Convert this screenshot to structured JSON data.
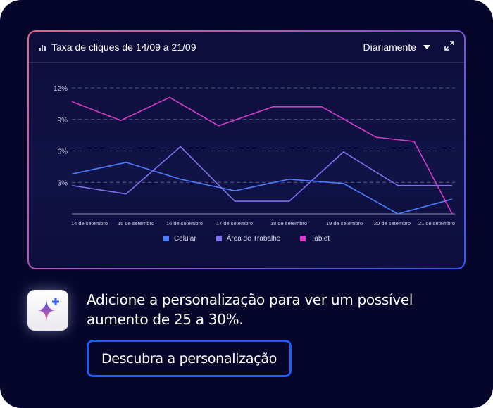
{
  "header": {
    "title": "Taxa de cliques de 14/09 a 21/09",
    "period_select": "Diariamente",
    "chart_icon": "bar-chart-icon",
    "expand_icon": "expand-icon"
  },
  "promo": {
    "icon": "sparkle-icon",
    "message_line1": "Adicione a personalização para ver um possível",
    "message_line2": "aumento de 25 a 30%.",
    "button_label": "Descubra a personalização"
  },
  "colors": {
    "accent": "#1d5cff",
    "Celular": "#4a7dff",
    "Área de Trabalho": "#7f70ee",
    "Tablet": "#d53cc9"
  },
  "chart_data": {
    "type": "line",
    "title": "Taxa de cliques de 14/09 a 21/09",
    "xlabel": "",
    "ylabel": "",
    "ylim": [
      0,
      12
    ],
    "yticks": [
      "3%",
      "6%",
      "9%",
      "12%"
    ],
    "ytick_values": [
      3,
      6,
      9,
      12
    ],
    "xtick_labels": [
      "14 de setembro",
      "15 de setembro",
      "16 de setembro",
      "17 de setembro",
      "18 de setembro",
      "19 de setembro",
      "20 de setembro",
      "21 de setembro"
    ],
    "grid": true,
    "legend_placement": "bottom",
    "series": [
      {
        "name": "Celular",
        "x": [
          14,
          15,
          16,
          17,
          18,
          19,
          20,
          21
        ],
        "values": [
          3.8,
          4.9,
          3.3,
          2.2,
          3.3,
          2.9,
          0.0,
          1.4
        ]
      },
      {
        "name": "Área de Trabalho",
        "x": [
          14,
          15,
          16,
          17,
          18,
          19,
          20,
          21
        ],
        "values": [
          2.7,
          1.9,
          6.4,
          1.2,
          1.2,
          5.9,
          2.7,
          2.7
        ]
      },
      {
        "name": "Tablet",
        "x": [
          14,
          14.9,
          15.8,
          16.7,
          17.7,
          18.6,
          19.6,
          20.3,
          21
        ],
        "values": [
          10.7,
          8.9,
          11.1,
          8.4,
          10.2,
          10.2,
          7.3,
          6.9,
          0.0
        ]
      }
    ]
  }
}
